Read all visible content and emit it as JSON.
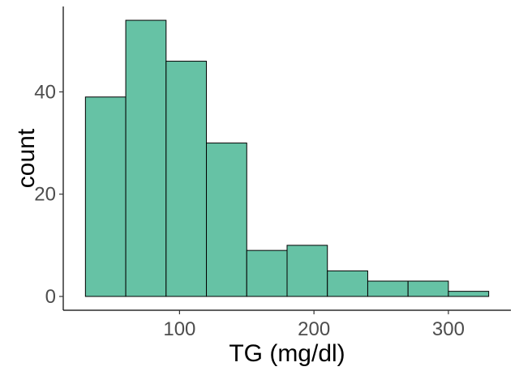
{
  "chart_data": {
    "type": "bar",
    "title": "",
    "xlabel": "TG (mg/dl)",
    "ylabel": "count",
    "bin_edges": [
      30,
      60,
      90,
      120,
      150,
      180,
      210,
      240,
      270,
      300,
      330
    ],
    "values": [
      39,
      54,
      46,
      30,
      9,
      10,
      5,
      3,
      3,
      1
    ],
    "xticks": [
      100,
      200,
      300
    ],
    "yticks": [
      0,
      20,
      40
    ],
    "xlim": [
      13.5,
      346.5
    ],
    "ylim": [
      -2.7,
      56.7
    ],
    "grid": false,
    "legend": "none",
    "bar_color": "#66C2A5",
    "bar_outline": "#000000"
  }
}
